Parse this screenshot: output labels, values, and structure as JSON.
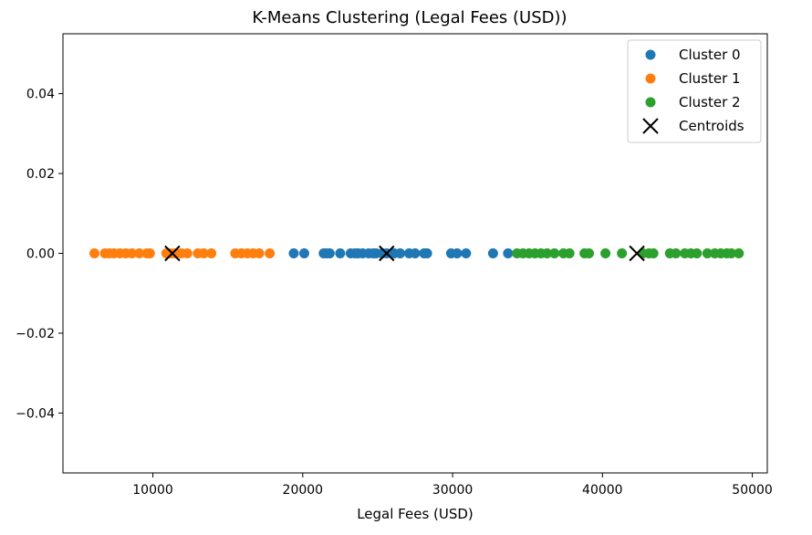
{
  "chart_data": {
    "type": "scatter",
    "title": "K-Means Clustering (Legal Fees (USD))",
    "xlabel": "Legal Fees (USD)",
    "ylabel": "",
    "xlim": [
      4000,
      51000
    ],
    "ylim": [
      -0.055,
      0.055
    ],
    "xticks": [
      10000,
      20000,
      30000,
      40000,
      50000
    ],
    "yticks": [
      0.04,
      0.02,
      0.0,
      -0.02,
      -0.04
    ],
    "xtick_labels": [
      "10000",
      "20000",
      "30000",
      "40000",
      "50000"
    ],
    "ytick_labels": [
      "0.04",
      "0.02",
      "0.00",
      "−0.02",
      "−0.04"
    ],
    "grid": false,
    "legend_position": "top-right",
    "series": [
      {
        "name": "Cluster 0",
        "color": "#1f77b4",
        "marker": "circle",
        "x": [
          19400,
          20100,
          21400,
          21600,
          21800,
          22500,
          23200,
          23500,
          23700,
          24000,
          24400,
          24700,
          24900,
          25300,
          25600,
          26100,
          26500,
          27100,
          27500,
          28100,
          28300,
          29900,
          30300,
          30900,
          32700,
          33700
        ],
        "y": [
          0,
          0,
          0,
          0,
          0,
          0,
          0,
          0,
          0,
          0,
          0,
          0,
          0,
          0,
          0,
          0,
          0,
          0,
          0,
          0,
          0,
          0,
          0,
          0,
          0,
          0
        ]
      },
      {
        "name": "Cluster 1",
        "color": "#ff7f0e",
        "marker": "circle",
        "x": [
          6100,
          6800,
          7100,
          7400,
          7800,
          8200,
          8600,
          9100,
          9600,
          9800,
          10900,
          11200,
          11500,
          11900,
          12300,
          13000,
          13400,
          13900,
          15500,
          15900,
          16300,
          16700,
          17100,
          17800
        ],
        "y": [
          0,
          0,
          0,
          0,
          0,
          0,
          0,
          0,
          0,
          0,
          0,
          0,
          0,
          0,
          0,
          0,
          0,
          0,
          0,
          0,
          0,
          0,
          0,
          0
        ]
      },
      {
        "name": "Cluster 2",
        "color": "#2ca02c",
        "marker": "circle",
        "x": [
          34300,
          34700,
          35100,
          35500,
          35900,
          36300,
          36800,
          37400,
          37800,
          38800,
          39100,
          40200,
          41300,
          42700,
          43100,
          43400,
          44500,
          44900,
          45500,
          45900,
          46300,
          47000,
          47500,
          47900,
          48300,
          48600,
          49100
        ],
        "y": [
          0,
          0,
          0,
          0,
          0,
          0,
          0,
          0,
          0,
          0,
          0,
          0,
          0,
          0,
          0,
          0,
          0,
          0,
          0,
          0,
          0,
          0,
          0,
          0,
          0,
          0,
          0
        ]
      },
      {
        "name": "Centroids",
        "color": "#000000",
        "marker": "x",
        "x": [
          11300,
          25600,
          42300
        ],
        "y": [
          0,
          0,
          0
        ]
      }
    ]
  }
}
